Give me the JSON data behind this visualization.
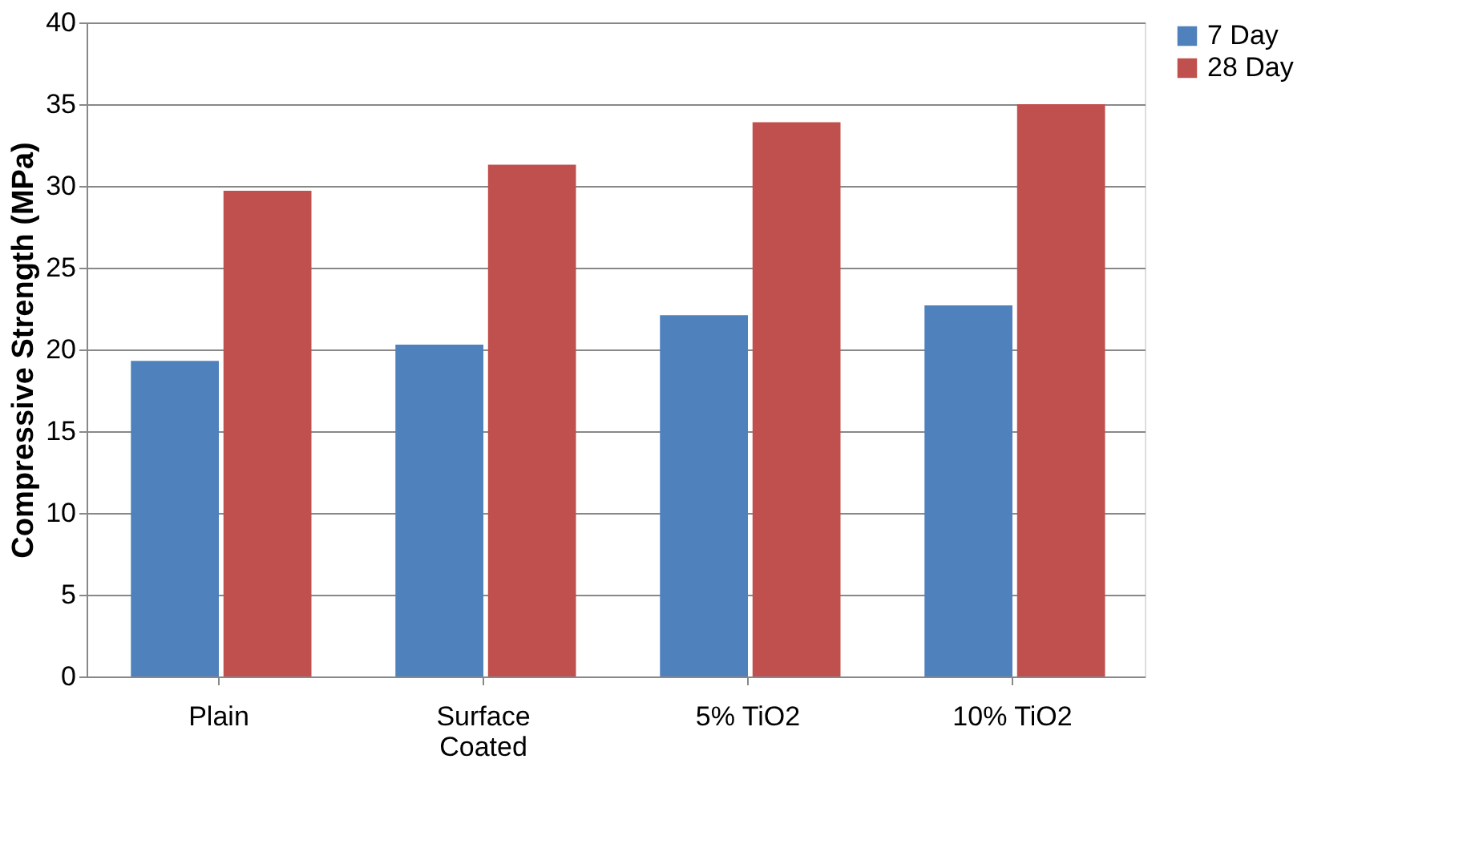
{
  "chart_data": {
    "type": "bar",
    "ylabel": "Compressive Strength (MPa)",
    "categories": [
      "Plain",
      "Surface Coated",
      "5% TiO2",
      "10% TiO2"
    ],
    "series": [
      {
        "name": "7 Day",
        "color": "#4f81bd",
        "values": [
          19.3,
          20.3,
          22.1,
          22.7
        ]
      },
      {
        "name": "28 Day",
        "color": "#c0504d",
        "values": [
          29.7,
          31.3,
          33.9,
          35.0
        ]
      }
    ],
    "ylim": [
      0,
      40
    ],
    "yticks": [
      0,
      5,
      10,
      15,
      20,
      25,
      30,
      35,
      40
    ],
    "grid": "y",
    "legend": "right"
  }
}
